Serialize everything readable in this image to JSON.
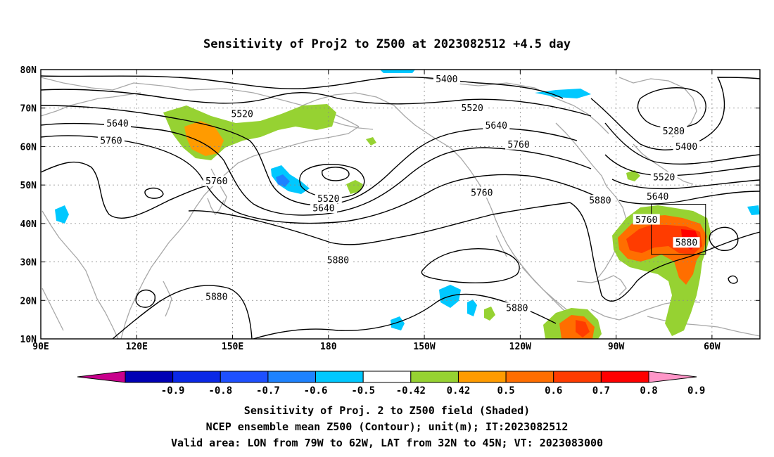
{
  "title": "Sensitivity of Proj2 to Z500 at 2023082512 +4.5 day",
  "map": {
    "lat_labels": [
      "80N",
      "70N",
      "60N",
      "50N",
      "40N",
      "30N",
      "20N",
      "10N"
    ],
    "lat_values": [
      80,
      70,
      60,
      50,
      40,
      30,
      20,
      10
    ],
    "lon_labels": [
      "90E",
      "120E",
      "150E",
      "180",
      "150W",
      "120W",
      "90W",
      "60W"
    ],
    "lon_values": [
      90,
      120,
      150,
      180,
      210,
      240,
      270,
      300
    ],
    "lon_range": [
      90,
      315
    ],
    "lat_range": [
      10,
      80
    ],
    "valid_area_box": {
      "lon": [
        281,
        298
      ],
      "lat": [
        32,
        45
      ]
    },
    "contour_labels": [
      {
        "text": "5400",
        "lon": 217,
        "lat": 77.5
      },
      {
        "text": "5520",
        "lon": 153,
        "lat": 68.5
      },
      {
        "text": "5520",
        "lon": 225,
        "lat": 70
      },
      {
        "text": "5640",
        "lon": 114,
        "lat": 66
      },
      {
        "text": "5640",
        "lon": 232.5,
        "lat": 65.5
      },
      {
        "text": "5760",
        "lon": 112,
        "lat": 61.5
      },
      {
        "text": "5760",
        "lon": 239.5,
        "lat": 60.5
      },
      {
        "text": "5280",
        "lon": 288,
        "lat": 64
      },
      {
        "text": "5400",
        "lon": 292,
        "lat": 60
      },
      {
        "text": "5520",
        "lon": 285,
        "lat": 52
      },
      {
        "text": "5640",
        "lon": 283,
        "lat": 47
      },
      {
        "text": "5760",
        "lon": 279.5,
        "lat": 41
      },
      {
        "text": "5880",
        "lon": 292,
        "lat": 35
      },
      {
        "text": "5760",
        "lon": 145,
        "lat": 51
      },
      {
        "text": "5520",
        "lon": 180,
        "lat": 46.5
      },
      {
        "text": "5640",
        "lon": 178.5,
        "lat": 44
      },
      {
        "text": "5760",
        "lon": 228,
        "lat": 48
      },
      {
        "text": "5880",
        "lon": 265,
        "lat": 46
      },
      {
        "text": "5880",
        "lon": 183,
        "lat": 30.5
      },
      {
        "text": "5880",
        "lon": 145,
        "lat": 21
      },
      {
        "text": "5880",
        "lon": 239,
        "lat": 18
      }
    ]
  },
  "colorbar": {
    "labels": [
      "-0.9",
      "-0.8",
      "-0.7",
      "-0.6",
      "-0.5",
      "-0.42",
      "0.42",
      "0.5",
      "0.6",
      "0.7",
      "0.8",
      "0.9"
    ],
    "colors": [
      "#c8008c",
      "#0000b4",
      "#0a28e6",
      "#1e50ff",
      "#1e82ff",
      "#00c8ff",
      "#ffffff",
      "#96d232",
      "#ff9b00",
      "#ff6e00",
      "#ff3c00",
      "#ff0000",
      "#ff96c8"
    ]
  },
  "captions": [
    "Sensitivity of Proj. 2 to Z500 field (Shaded)",
    "NCEP ensemble mean Z500 (Contour); unit(m); IT:2023082512",
    "Valid area: LON from 79W to 62W, LAT from 32N to 45N; VT: 2023083000"
  ]
}
